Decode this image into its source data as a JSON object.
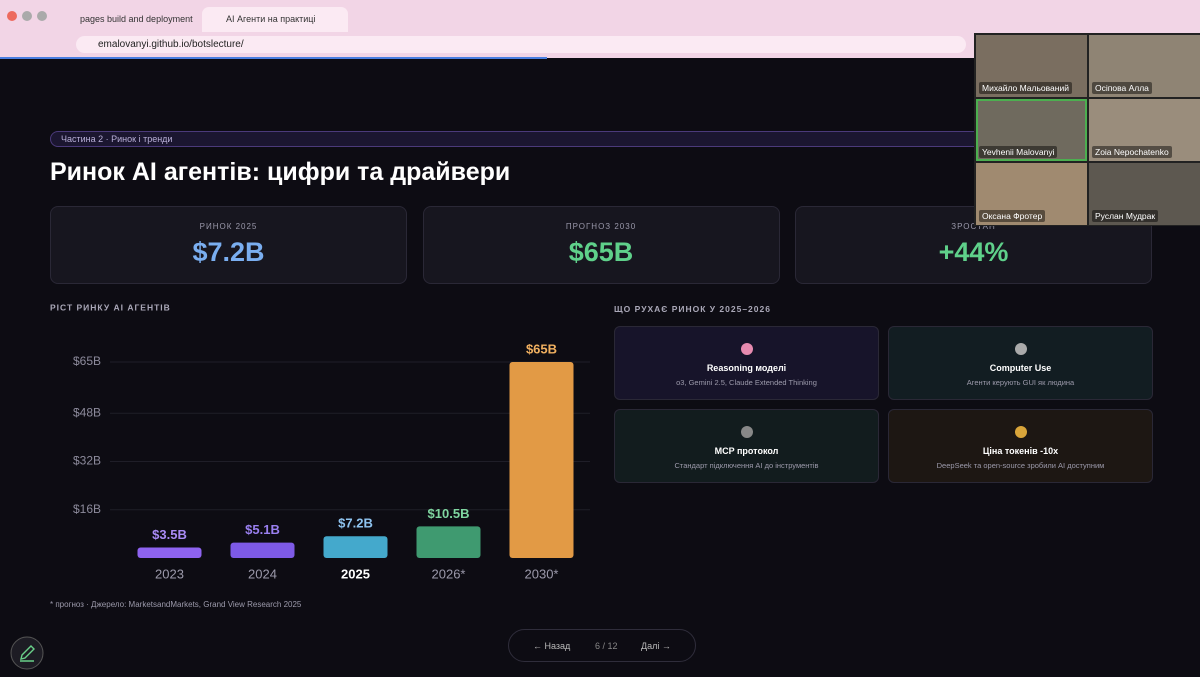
{
  "browser": {
    "tabs": [
      "pages build and deployment",
      "AI Агенти на практиці"
    ],
    "url": "emalovanyi.github.io/botslecture/"
  },
  "slide": {
    "badge": "Частина 2 · Ринок і тренди",
    "title": "Ринок AI агентів: цифри та драйвери",
    "stats": [
      {
        "label": "РИНОК 2025",
        "value": "$7.2B"
      },
      {
        "label": "ПРОГНОЗ 2030",
        "value": "$65B"
      },
      {
        "label": "ЗРОСТАН",
        "value": "+44%"
      }
    ],
    "drivers": {
      "title": "ЩО РУХАЄ РИНОК У 2025–2026",
      "items": [
        {
          "title": "Reasoning моделі",
          "subtitle": "o3, Gemini 2.5, Claude Extended Thinking"
        },
        {
          "title": "Computer Use",
          "subtitle": "Агенти керують GUI як людина"
        },
        {
          "title": "MCP протокол",
          "subtitle": "Стандарт підключення AI до інструментів"
        },
        {
          "title": "Ціна токенів -10x",
          "subtitle": "DeepSeek та open-source зробили AI доступним"
        }
      ]
    },
    "footnote": "* прогноз · Джерело: MarketsandMarkets, Grand View Research 2025",
    "nav": {
      "prev": "← Назад",
      "page": "6 / 12",
      "next": "Далі →"
    }
  },
  "chart_data": {
    "type": "bar",
    "title": "РІСТ РИНКУ AI АГЕНТІВ",
    "categories": [
      "2023",
      "2024",
      "2025",
      "2026*",
      "2030*"
    ],
    "values": [
      3.5,
      5.1,
      7.2,
      10.5,
      65
    ],
    "value_labels": [
      "$3.5B",
      "$5.1B",
      "$7.2B",
      "$10.5B",
      "$65B"
    ],
    "colors": [
      "#8e63f0",
      "#7d5ae6",
      "#44a9cc",
      "#3f9a70",
      "#e29a45"
    ],
    "label_colors": [
      "#a98bf5",
      "#9a80f0",
      "#8fc4f0",
      "#7fd6a0",
      "#f0b060"
    ],
    "ylim": [
      0,
      65
    ],
    "yticks": [
      {
        "value": 16,
        "label": "$16B"
      },
      {
        "value": 32,
        "label": "$32B"
      },
      {
        "value": 48,
        "label": "$48B"
      },
      {
        "value": 65,
        "label": "$65B"
      }
    ],
    "grid": true
  },
  "participants": [
    "Михайло Мальований",
    "Осіпова Алла",
    "Yevhenii Malovanyi",
    "Zoia Nepochatenko",
    "Оксана Фротер",
    "Руслан Мудрак"
  ]
}
